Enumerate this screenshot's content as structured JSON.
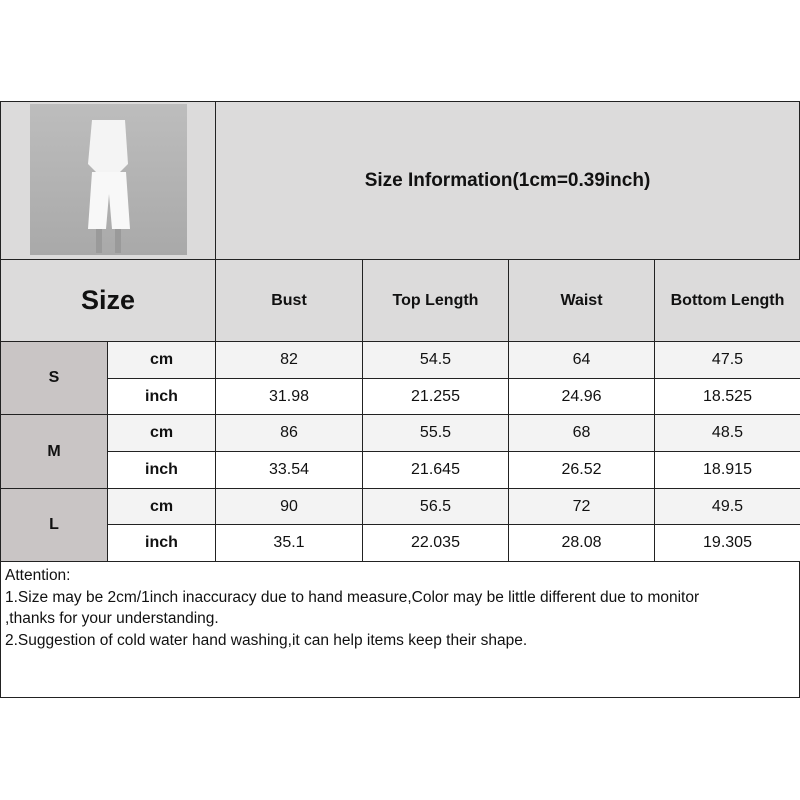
{
  "title": "Size Information(1cm=0.39inch)",
  "size_label": "Size",
  "columns": [
    "Bust",
    "Top Length",
    "Waist",
    "Bottom Length"
  ],
  "rows": [
    {
      "size": "S",
      "cm": {
        "unit": "cm",
        "values": [
          "82",
          "54.5",
          "64",
          "47.5"
        ]
      },
      "inch": {
        "unit": "inch",
        "values": [
          "31.98",
          "21.255",
          "24.96",
          "18.525"
        ]
      }
    },
    {
      "size": "M",
      "cm": {
        "unit": "cm",
        "values": [
          "86",
          "55.5",
          "68",
          "48.5"
        ]
      },
      "inch": {
        "unit": "inch",
        "values": [
          "33.54",
          "21.645",
          "26.52",
          "18.915"
        ]
      }
    },
    {
      "size": "L",
      "cm": {
        "unit": "cm",
        "values": [
          "90",
          "56.5",
          "72",
          "49.5"
        ]
      },
      "inch": {
        "unit": "inch",
        "values": [
          "35.1",
          "22.035",
          "28.08",
          "19.305"
        ]
      }
    }
  ],
  "attention": {
    "heading": "Attention:",
    "line1": "1.Size may be 2cm/1inch inaccuracy due to hand measure,Color may be little different due to monitor",
    "line1b": ",thanks for your understanding.",
    "line2": "2.Suggestion of cold water hand washing,it can help items keep their shape."
  }
}
